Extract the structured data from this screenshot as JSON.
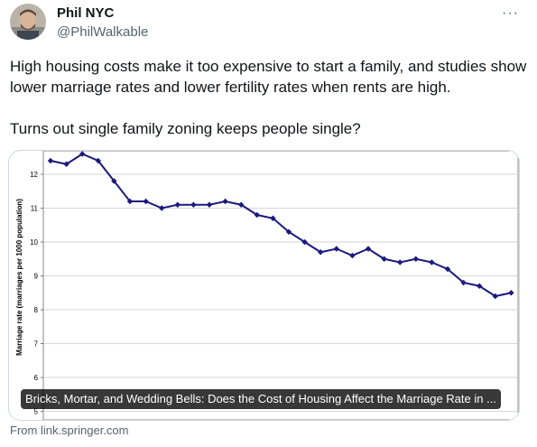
{
  "author": {
    "name": "Phil NYC",
    "handle": "@PhilWalkable",
    "avatar_icon": "profile-photo"
  },
  "more_icon": "ellipsis-icon",
  "tweet": {
    "paragraph_1": "High housing costs make it too expensive to start a family, and studies show lower marriage rates and lower fertility rates when rents are high.",
    "paragraph_2": "Turns out single family zoning keeps people single?"
  },
  "card": {
    "title": "Bricks, Mortar, and Wedding Bells: Does the Cost of Housing Affect the Marriage Rate in ...",
    "source": "From link.springer.com"
  },
  "chart_data": {
    "type": "line",
    "ylabel": "Marriage rate (marriages per 1000 population)",
    "xlabel": "",
    "ylim": [
      5,
      12.7
    ],
    "yticks": [
      5,
      6,
      7,
      8,
      9,
      10,
      11,
      12
    ],
    "grid": true,
    "series_color": "#1a1a7e",
    "values": [
      12.4,
      12.3,
      12.6,
      12.4,
      11.8,
      11.2,
      11.2,
      11.0,
      11.1,
      11.1,
      11.1,
      11.2,
      11.1,
      10.8,
      10.7,
      10.3,
      10.0,
      9.7,
      9.8,
      9.6,
      9.8,
      9.5,
      9.4,
      9.5,
      9.4,
      9.2,
      8.8,
      8.7,
      8.4,
      8.5
    ]
  }
}
